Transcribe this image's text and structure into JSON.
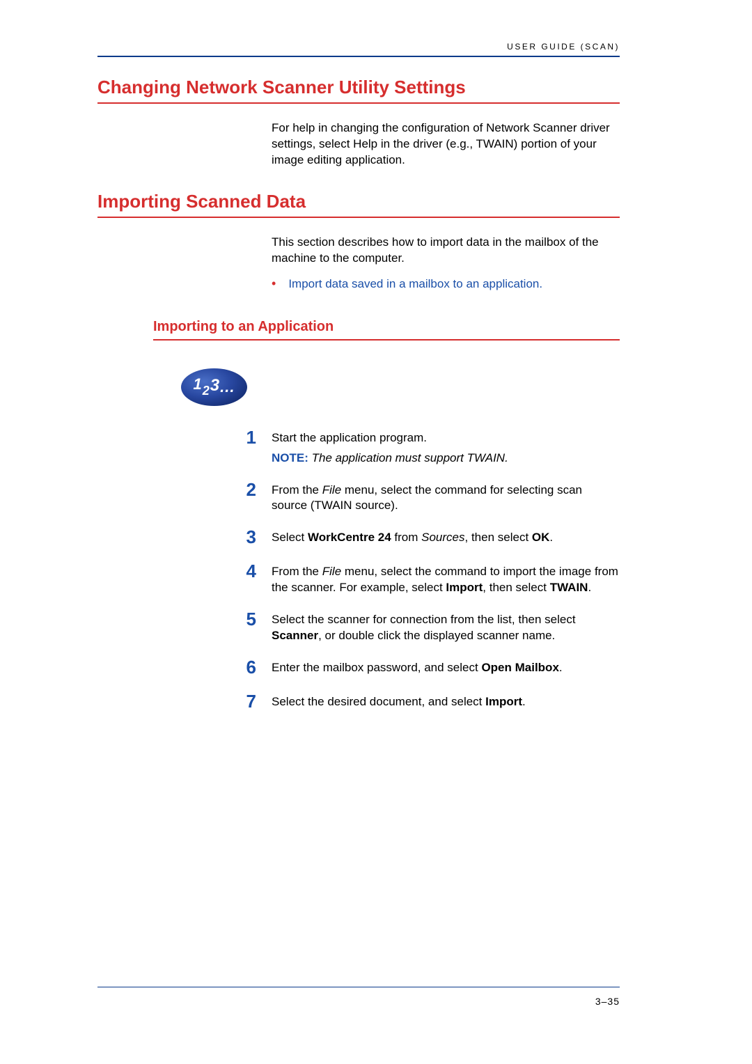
{
  "header": {
    "running_head": "USER GUIDE (SCAN)"
  },
  "sections": {
    "s1": {
      "title": "Changing Network Scanner Utility Settings",
      "body": "For help in changing the configuration of Network Scanner driver settings, select Help in the driver (e.g., TWAIN) portion of your image editing application."
    },
    "s2": {
      "title": "Importing Scanned Data",
      "body": "This section describes how to import data in the mailbox of the machine to the computer.",
      "bullet": "Import data saved in a mailbox to an application."
    },
    "s3": {
      "title": "Importing to an Application"
    }
  },
  "steps": [
    {
      "num": "1",
      "parts": [
        {
          "t": "Start the application program.",
          "cls": ""
        }
      ],
      "note_label": "NOTE:",
      "note_text": " The application must support TWAIN."
    },
    {
      "num": "2",
      "parts": [
        {
          "t": "From the ",
          "cls": ""
        },
        {
          "t": "File",
          "cls": "ital"
        },
        {
          "t": " menu, select the command for selecting scan source (TWAIN source).",
          "cls": ""
        }
      ]
    },
    {
      "num": "3",
      "parts": [
        {
          "t": "Select ",
          "cls": ""
        },
        {
          "t": "WorkCentre 24",
          "cls": "bold"
        },
        {
          "t": " from ",
          "cls": ""
        },
        {
          "t": "Sources",
          "cls": "ital"
        },
        {
          "t": ", then select ",
          "cls": ""
        },
        {
          "t": "OK",
          "cls": "bold"
        },
        {
          "t": ".",
          "cls": ""
        }
      ]
    },
    {
      "num": "4",
      "parts": [
        {
          "t": "From the ",
          "cls": ""
        },
        {
          "t": "File",
          "cls": "ital"
        },
        {
          "t": " menu, select the command to import the image from the scanner. For example, select ",
          "cls": ""
        },
        {
          "t": "Import",
          "cls": "bold"
        },
        {
          "t": ", then select ",
          "cls": ""
        },
        {
          "t": "TWAIN",
          "cls": "bold"
        },
        {
          "t": ".",
          "cls": ""
        }
      ]
    },
    {
      "num": "5",
      "parts": [
        {
          "t": "Select the scanner for connection from the list, then select ",
          "cls": ""
        },
        {
          "t": "Scanner",
          "cls": "bold"
        },
        {
          "t": ", or double click the displayed scanner name.",
          "cls": ""
        }
      ]
    },
    {
      "num": "6",
      "parts": [
        {
          "t": "Enter the mailbox password, and select ",
          "cls": ""
        },
        {
          "t": "Open Mailbox",
          "cls": "bold"
        },
        {
          "t": ".",
          "cls": ""
        }
      ]
    },
    {
      "num": "7",
      "parts": [
        {
          "t": "Select the desired document, and select ",
          "cls": ""
        },
        {
          "t": "Import",
          "cls": "bold"
        },
        {
          "t": ".",
          "cls": ""
        }
      ]
    }
  ],
  "footer": {
    "page_num": "3–35"
  },
  "colors": {
    "heading_red": "#d62e2e",
    "rule_blue": "#0a3a8a",
    "link_blue": "#1a4fa8",
    "body_text": "#000000",
    "background": "#ffffff"
  },
  "badge": {
    "text": "123..."
  }
}
